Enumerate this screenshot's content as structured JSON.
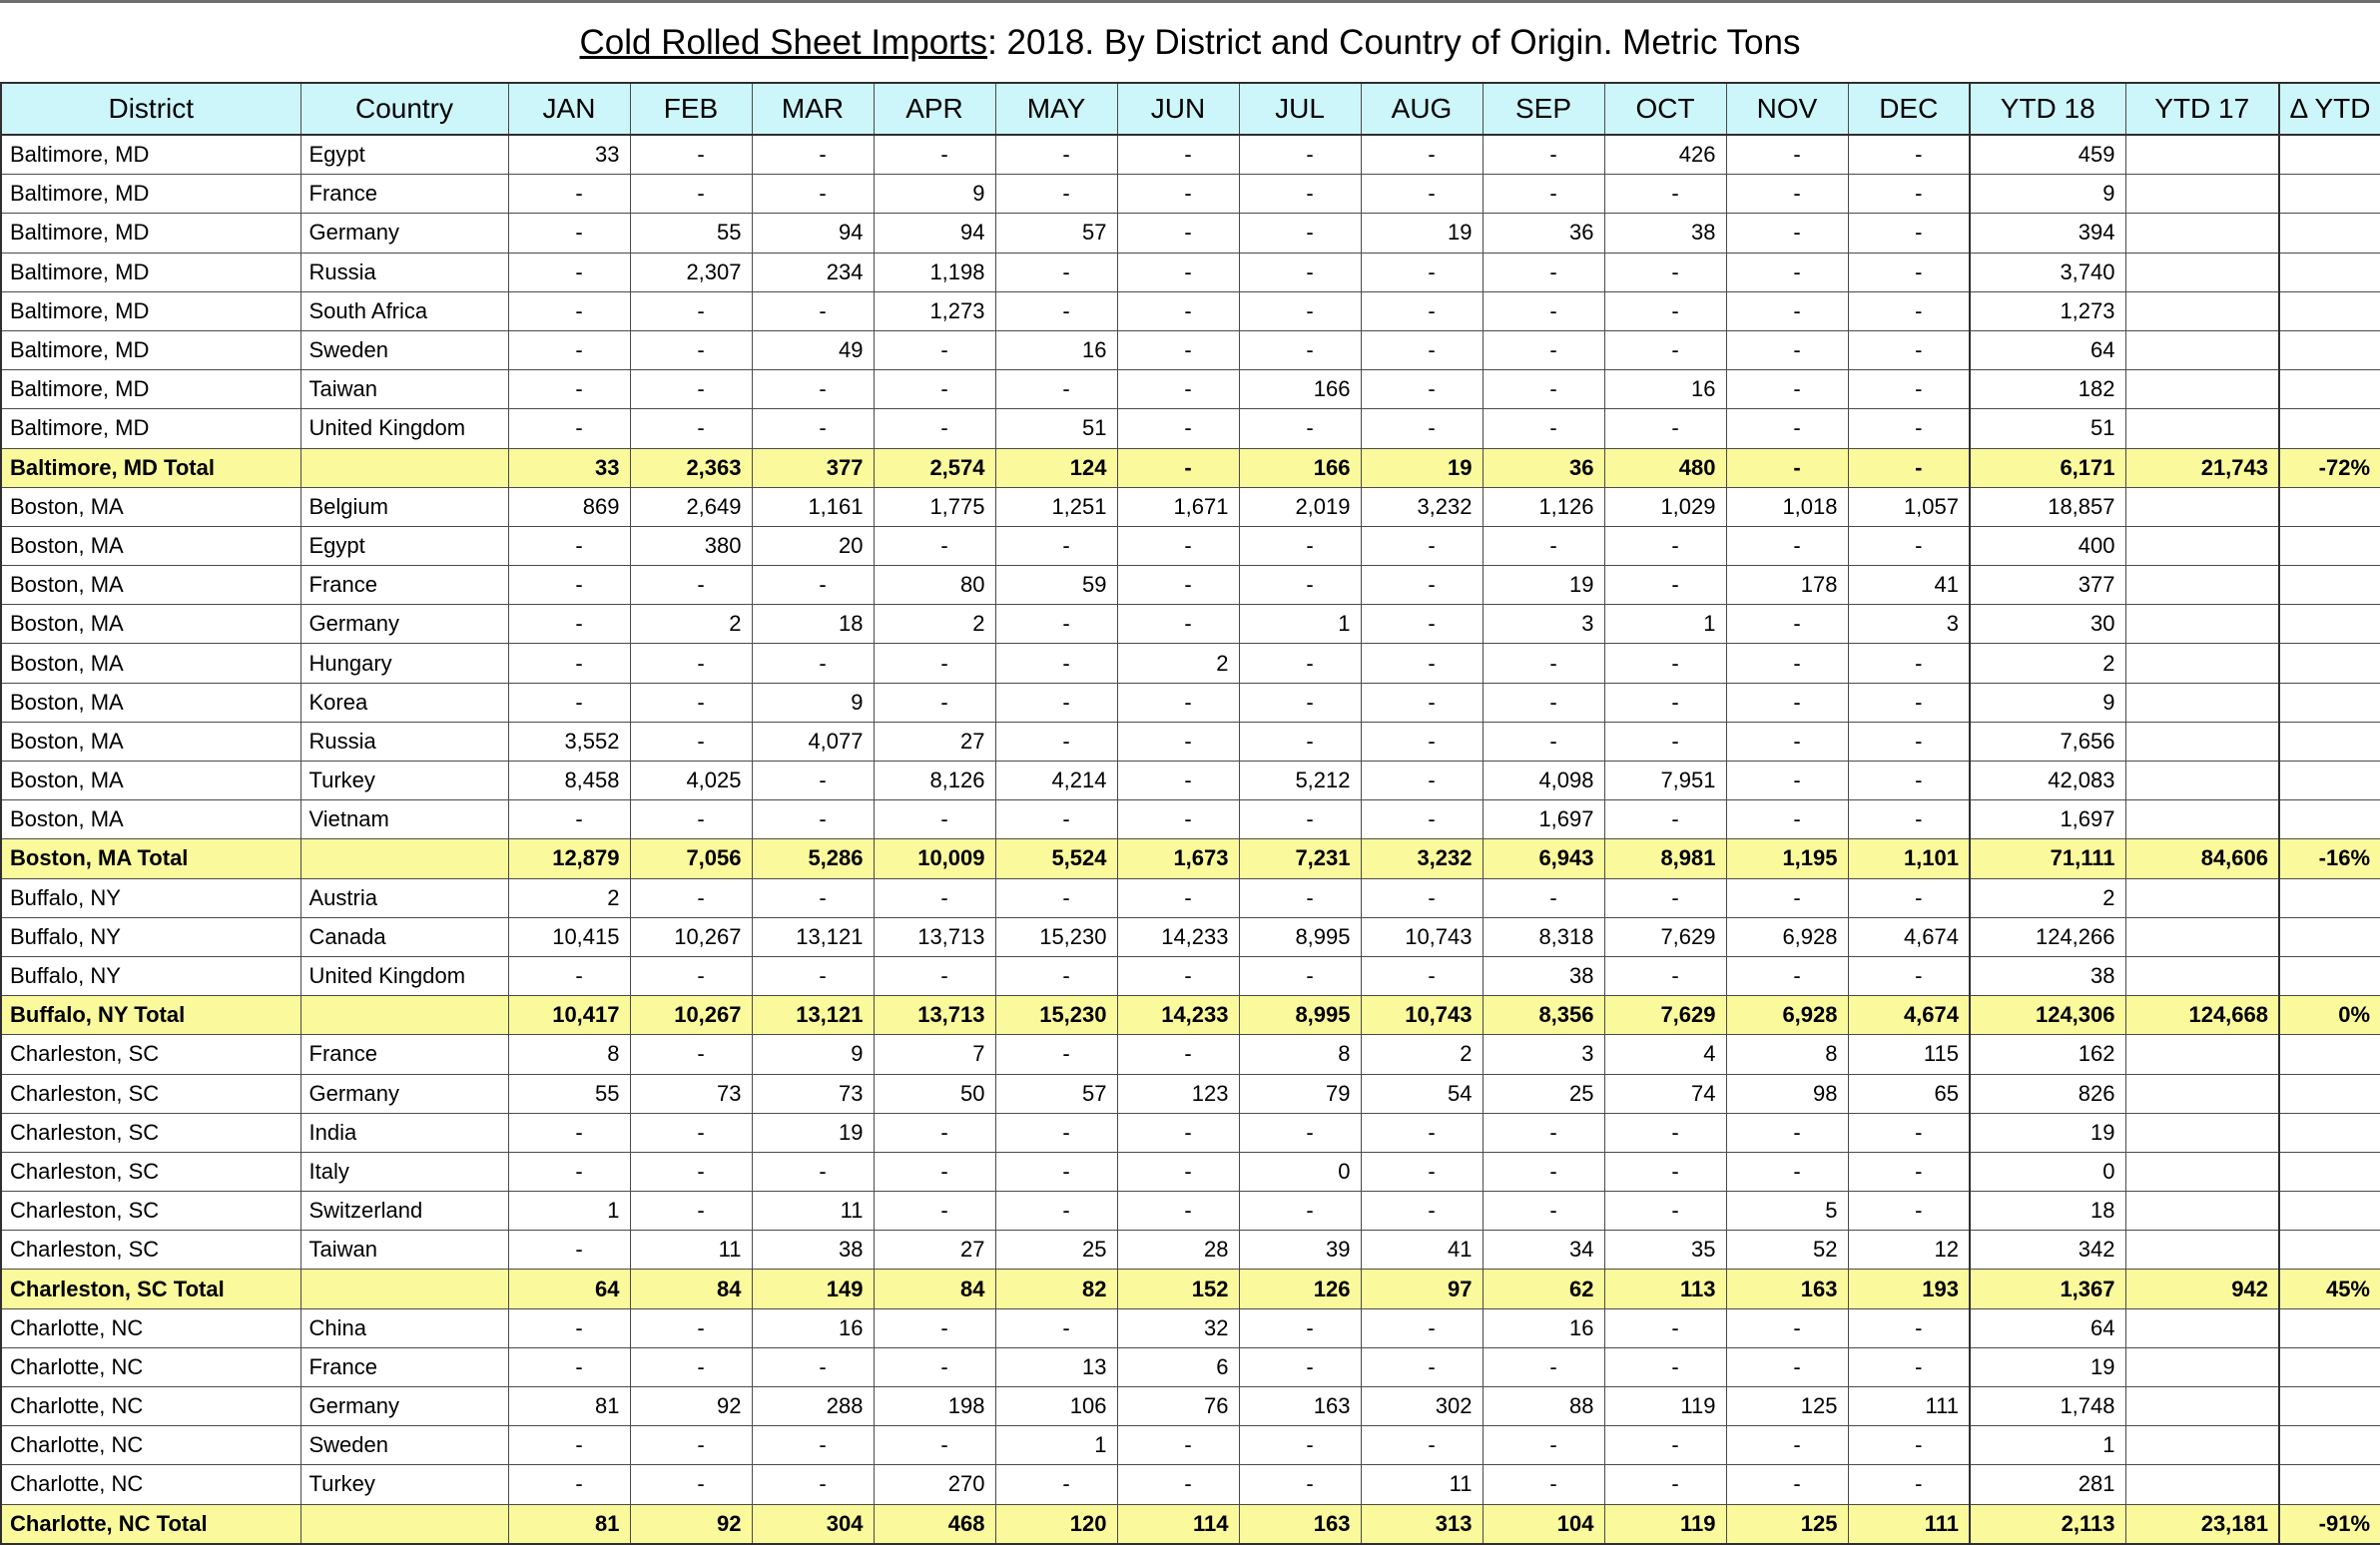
{
  "title": {
    "underlined": "Cold Rolled Sheet Imports",
    "rest": ": 2018. By District and Country of Origin. Metric Tons"
  },
  "colors": {
    "header_bg": "#CDF6FA",
    "total_row_bg": "#FAF99C",
    "grid_line": "#4A4A4A",
    "text": "#000000"
  },
  "table": {
    "columns": [
      "District",
      "Country",
      "JAN",
      "FEB",
      "MAR",
      "APR",
      "MAY",
      "JUN",
      "JUL",
      "AUG",
      "SEP",
      "OCT",
      "NOV",
      "DEC",
      "YTD 18",
      "YTD 17",
      "Δ YTD"
    ],
    "sections": [
      {
        "district": "Baltimore, MD",
        "rows": [
          {
            "country": "Egypt",
            "months": [
              "33",
              "-",
              "-",
              "-",
              "-",
              "-",
              "-",
              "-",
              "-",
              "426",
              "-",
              "-"
            ],
            "ytd18": "459"
          },
          {
            "country": "France",
            "months": [
              "-",
              "-",
              "-",
              "9",
              "-",
              "-",
              "-",
              "-",
              "-",
              "-",
              "-",
              "-"
            ],
            "ytd18": "9"
          },
          {
            "country": "Germany",
            "months": [
              "-",
              "55",
              "94",
              "94",
              "57",
              "-",
              "-",
              "19",
              "36",
              "38",
              "-",
              "-"
            ],
            "ytd18": "394"
          },
          {
            "country": "Russia",
            "months": [
              "-",
              "2,307",
              "234",
              "1,198",
              "-",
              "-",
              "-",
              "-",
              "-",
              "-",
              "-",
              "-"
            ],
            "ytd18": "3,740"
          },
          {
            "country": "South Africa",
            "months": [
              "-",
              "-",
              "-",
              "1,273",
              "-",
              "-",
              "-",
              "-",
              "-",
              "-",
              "-",
              "-"
            ],
            "ytd18": "1,273"
          },
          {
            "country": "Sweden",
            "months": [
              "-",
              "-",
              "49",
              "-",
              "16",
              "-",
              "-",
              "-",
              "-",
              "-",
              "-",
              "-"
            ],
            "ytd18": "64"
          },
          {
            "country": "Taiwan",
            "months": [
              "-",
              "-",
              "-",
              "-",
              "-",
              "-",
              "166",
              "-",
              "-",
              "16",
              "-",
              "-"
            ],
            "ytd18": "182"
          },
          {
            "country": "United Kingdom",
            "months": [
              "-",
              "-",
              "-",
              "-",
              "51",
              "-",
              "-",
              "-",
              "-",
              "-",
              "-",
              "-"
            ],
            "ytd18": "51"
          }
        ],
        "total": {
          "label": "Baltimore, MD Total",
          "months": [
            "33",
            "2,363",
            "377",
            "2,574",
            "124",
            "-",
            "166",
            "19",
            "36",
            "480",
            "-",
            "-"
          ],
          "ytd18": "6,171",
          "ytd17": "21,743",
          "delta": "-72%"
        }
      },
      {
        "district": "Boston, MA",
        "rows": [
          {
            "country": "Belgium",
            "months": [
              "869",
              "2,649",
              "1,161",
              "1,775",
              "1,251",
              "1,671",
              "2,019",
              "3,232",
              "1,126",
              "1,029",
              "1,018",
              "1,057"
            ],
            "ytd18": "18,857"
          },
          {
            "country": "Egypt",
            "months": [
              "-",
              "380",
              "20",
              "-",
              "-",
              "-",
              "-",
              "-",
              "-",
              "-",
              "-",
              "-"
            ],
            "ytd18": "400"
          },
          {
            "country": "France",
            "months": [
              "-",
              "-",
              "-",
              "80",
              "59",
              "-",
              "-",
              "-",
              "19",
              "-",
              "178",
              "41"
            ],
            "ytd18": "377"
          },
          {
            "country": "Germany",
            "months": [
              "-",
              "2",
              "18",
              "2",
              "-",
              "-",
              "1",
              "-",
              "3",
              "1",
              "-",
              "3"
            ],
            "ytd18": "30"
          },
          {
            "country": "Hungary",
            "months": [
              "-",
              "-",
              "-",
              "-",
              "-",
              "2",
              "-",
              "-",
              "-",
              "-",
              "-",
              "-"
            ],
            "ytd18": "2"
          },
          {
            "country": "Korea",
            "months": [
              "-",
              "-",
              "9",
              "-",
              "-",
              "-",
              "-",
              "-",
              "-",
              "-",
              "-",
              "-"
            ],
            "ytd18": "9"
          },
          {
            "country": "Russia",
            "months": [
              "3,552",
              "-",
              "4,077",
              "27",
              "-",
              "-",
              "-",
              "-",
              "-",
              "-",
              "-",
              "-"
            ],
            "ytd18": "7,656"
          },
          {
            "country": "Turkey",
            "months": [
              "8,458",
              "4,025",
              "-",
              "8,126",
              "4,214",
              "-",
              "5,212",
              "-",
              "4,098",
              "7,951",
              "-",
              "-"
            ],
            "ytd18": "42,083"
          },
          {
            "country": "Vietnam",
            "months": [
              "-",
              "-",
              "-",
              "-",
              "-",
              "-",
              "-",
              "-",
              "1,697",
              "-",
              "-",
              "-"
            ],
            "ytd18": "1,697"
          }
        ],
        "total": {
          "label": "Boston, MA Total",
          "months": [
            "12,879",
            "7,056",
            "5,286",
            "10,009",
            "5,524",
            "1,673",
            "7,231",
            "3,232",
            "6,943",
            "8,981",
            "1,195",
            "1,101"
          ],
          "ytd18": "71,111",
          "ytd17": "84,606",
          "delta": "-16%"
        }
      },
      {
        "district": "Buffalo, NY",
        "rows": [
          {
            "country": "Austria",
            "months": [
              "2",
              "-",
              "-",
              "-",
              "-",
              "-",
              "-",
              "-",
              "-",
              "-",
              "-",
              "-"
            ],
            "ytd18": "2"
          },
          {
            "country": "Canada",
            "months": [
              "10,415",
              "10,267",
              "13,121",
              "13,713",
              "15,230",
              "14,233",
              "8,995",
              "10,743",
              "8,318",
              "7,629",
              "6,928",
              "4,674"
            ],
            "ytd18": "124,266"
          },
          {
            "country": "United Kingdom",
            "months": [
              "-",
              "-",
              "-",
              "-",
              "-",
              "-",
              "-",
              "-",
              "38",
              "-",
              "-",
              "-"
            ],
            "ytd18": "38"
          }
        ],
        "total": {
          "label": "Buffalo, NY Total",
          "months": [
            "10,417",
            "10,267",
            "13,121",
            "13,713",
            "15,230",
            "14,233",
            "8,995",
            "10,743",
            "8,356",
            "7,629",
            "6,928",
            "4,674"
          ],
          "ytd18": "124,306",
          "ytd17": "124,668",
          "delta": "0%"
        }
      },
      {
        "district": "Charleston, SC",
        "rows": [
          {
            "country": "France",
            "months": [
              "8",
              "-",
              "9",
              "7",
              "-",
              "-",
              "8",
              "2",
              "3",
              "4",
              "8",
              "115"
            ],
            "ytd18": "162"
          },
          {
            "country": "Germany",
            "months": [
              "55",
              "73",
              "73",
              "50",
              "57",
              "123",
              "79",
              "54",
              "25",
              "74",
              "98",
              "65"
            ],
            "ytd18": "826"
          },
          {
            "country": "India",
            "months": [
              "-",
              "-",
              "19",
              "-",
              "-",
              "-",
              "-",
              "-",
              "-",
              "-",
              "-",
              "-"
            ],
            "ytd18": "19"
          },
          {
            "country": "Italy",
            "months": [
              "-",
              "-",
              "-",
              "-",
              "-",
              "-",
              "0",
              "-",
              "-",
              "-",
              "-",
              "-"
            ],
            "ytd18": "0"
          },
          {
            "country": "Switzerland",
            "months": [
              "1",
              "-",
              "11",
              "-",
              "-",
              "-",
              "-",
              "-",
              "-",
              "-",
              "5",
              "-"
            ],
            "ytd18": "18"
          },
          {
            "country": "Taiwan",
            "months": [
              "-",
              "11",
              "38",
              "27",
              "25",
              "28",
              "39",
              "41",
              "34",
              "35",
              "52",
              "12"
            ],
            "ytd18": "342"
          }
        ],
        "total": {
          "label": "Charleston, SC Total",
          "months": [
            "64",
            "84",
            "149",
            "84",
            "82",
            "152",
            "126",
            "97",
            "62",
            "113",
            "163",
            "193"
          ],
          "ytd18": "1,367",
          "ytd17": "942",
          "delta": "45%"
        }
      },
      {
        "district": "Charlotte, NC",
        "rows": [
          {
            "country": "China",
            "months": [
              "-",
              "-",
              "16",
              "-",
              "-",
              "32",
              "-",
              "-",
              "16",
              "-",
              "-",
              "-"
            ],
            "ytd18": "64"
          },
          {
            "country": "France",
            "months": [
              "-",
              "-",
              "-",
              "-",
              "13",
              "6",
              "-",
              "-",
              "-",
              "-",
              "-",
              "-"
            ],
            "ytd18": "19"
          },
          {
            "country": "Germany",
            "months": [
              "81",
              "92",
              "288",
              "198",
              "106",
              "76",
              "163",
              "302",
              "88",
              "119",
              "125",
              "111"
            ],
            "ytd18": "1,748"
          },
          {
            "country": "Sweden",
            "months": [
              "-",
              "-",
              "-",
              "-",
              "1",
              "-",
              "-",
              "-",
              "-",
              "-",
              "-",
              "-"
            ],
            "ytd18": "1"
          },
          {
            "country": "Turkey",
            "months": [
              "-",
              "-",
              "-",
              "270",
              "-",
              "-",
              "-",
              "11",
              "-",
              "-",
              "-",
              "-"
            ],
            "ytd18": "281"
          }
        ],
        "total": {
          "label": "Charlotte, NC Total",
          "months": [
            "81",
            "92",
            "304",
            "468",
            "120",
            "114",
            "163",
            "313",
            "104",
            "119",
            "125",
            "111"
          ],
          "ytd18": "2,113",
          "ytd17": "23,181",
          "delta": "-91%"
        }
      }
    ]
  }
}
